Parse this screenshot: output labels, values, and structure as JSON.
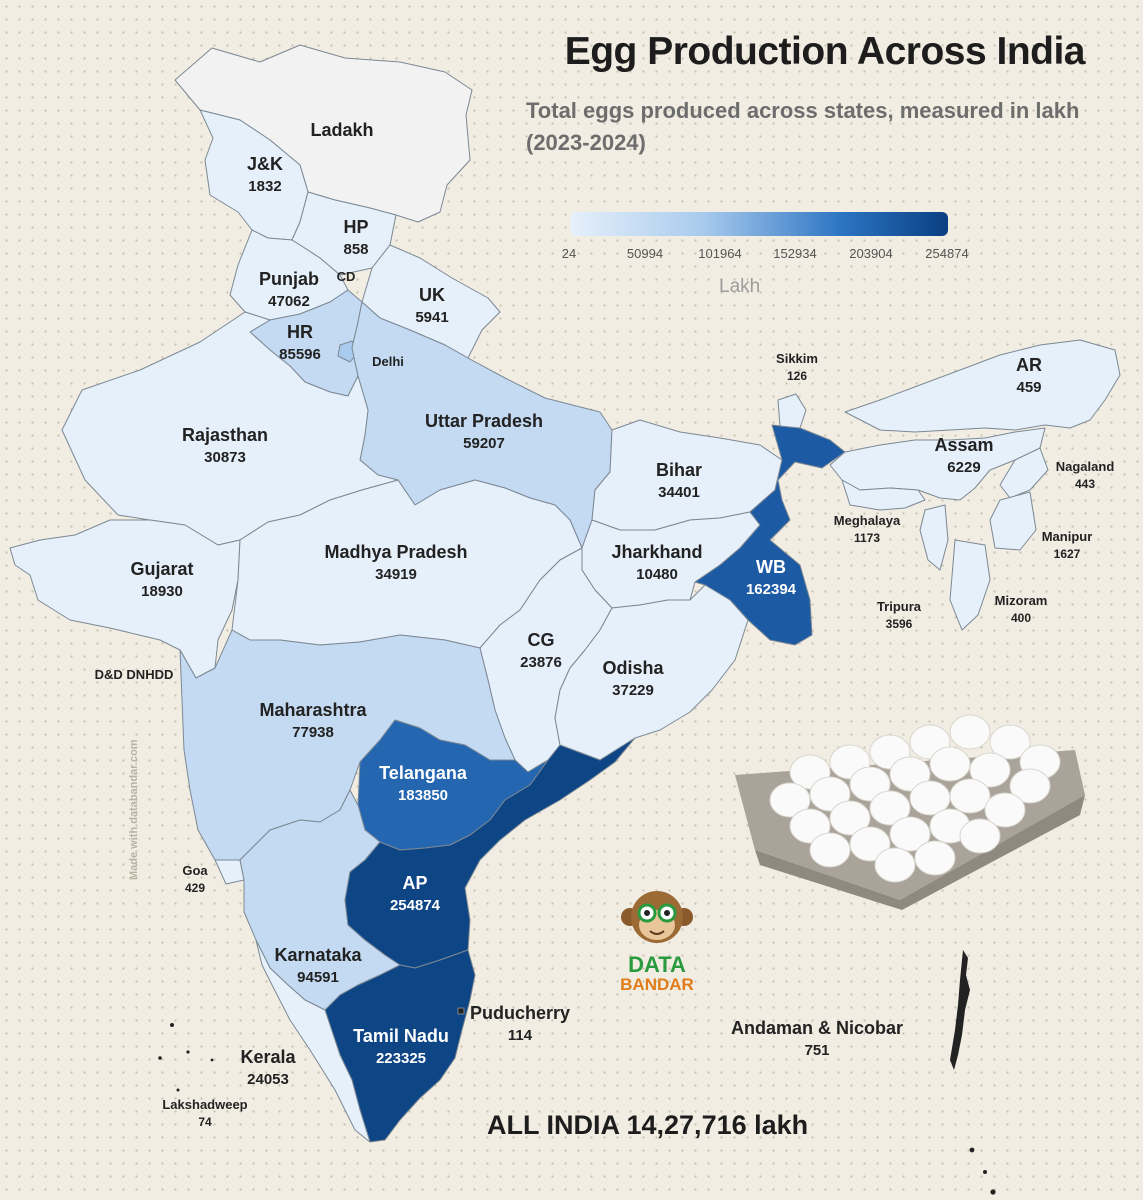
{
  "title": "Egg Production Across India",
  "subtitle": "Total eggs produced across states, measured in lakh (2023-2024)",
  "legend": {
    "ticks": [
      "24",
      "50994",
      "101964",
      "152934",
      "203904",
      "254874"
    ],
    "unit": "Lakh",
    "colors": [
      "#e6f0fb",
      "#a9cbed",
      "#2c74c2",
      "#0a3f82"
    ]
  },
  "total_label": "ALL INDIA 14,27,716 lakh",
  "credit": "Made with databandar.com",
  "brand": {
    "line1": "DATA",
    "line2": "BANDAR"
  },
  "colors": {
    "background": "#f1ede2",
    "lightest": "#e6f0fb",
    "light": "#c3daf2",
    "mid": "#a9cbed",
    "strong": "#2c74c2",
    "darkest": "#0e4585",
    "unfilled": "#f2f2f2"
  },
  "states": [
    {
      "key": "ladakh",
      "name": "Ladakh",
      "value": ""
    },
    {
      "key": "jk",
      "name": "J&K",
      "value": "1832"
    },
    {
      "key": "hp",
      "name": "HP",
      "value": "858"
    },
    {
      "key": "punjab",
      "name": "Punjab",
      "value": "47062"
    },
    {
      "key": "chd",
      "name": "CD",
      "value": ""
    },
    {
      "key": "uk",
      "name": "UK",
      "value": "5941"
    },
    {
      "key": "hr",
      "name": "HR",
      "value": "85596"
    },
    {
      "key": "delhi",
      "name": "Delhi",
      "value": ""
    },
    {
      "key": "rajasthan",
      "name": "Rajasthan",
      "value": "30873"
    },
    {
      "key": "up",
      "name": "Uttar Pradesh",
      "value": "59207"
    },
    {
      "key": "bihar",
      "name": "Bihar",
      "value": "34401"
    },
    {
      "key": "sikkim",
      "name": "Sikkim",
      "value": "126"
    },
    {
      "key": "ar",
      "name": "AR",
      "value": "459"
    },
    {
      "key": "assam",
      "name": "Assam",
      "value": "6229"
    },
    {
      "key": "nagaland",
      "name": "Nagaland",
      "value": "443"
    },
    {
      "key": "meghalaya",
      "name": "Meghalaya",
      "value": "1173"
    },
    {
      "key": "manipur",
      "name": "Manipur",
      "value": "1627"
    },
    {
      "key": "tripura",
      "name": "Tripura",
      "value": "3596"
    },
    {
      "key": "mizoram",
      "name": "Mizoram",
      "value": "400"
    },
    {
      "key": "gujarat",
      "name": "Gujarat",
      "value": "18930"
    },
    {
      "key": "mp",
      "name": "Madhya Pradesh",
      "value": "34919"
    },
    {
      "key": "jharkhand",
      "name": "Jharkhand",
      "value": "10480"
    },
    {
      "key": "wb",
      "name": "WB",
      "value": "162394"
    },
    {
      "key": "cg",
      "name": "CG",
      "value": "23876"
    },
    {
      "key": "odisha",
      "name": "Odisha",
      "value": "37229"
    },
    {
      "key": "dd",
      "name": "D&D DNHDD",
      "value": ""
    },
    {
      "key": "maharashtra",
      "name": "Maharashtra",
      "value": "77938"
    },
    {
      "key": "telangana",
      "name": "Telangana",
      "value": "183850"
    },
    {
      "key": "goa",
      "name": "Goa",
      "value": "429"
    },
    {
      "key": "ap",
      "name": "AP",
      "value": "254874"
    },
    {
      "key": "karnataka",
      "name": "Karnataka",
      "value": "94591"
    },
    {
      "key": "puducherry",
      "name": "Puducherry",
      "value": "114"
    },
    {
      "key": "tn",
      "name": "Tamil Nadu",
      "value": "223325"
    },
    {
      "key": "kerala",
      "name": "Kerala",
      "value": "24053"
    },
    {
      "key": "lakshadweep",
      "name": "Lakshadweep",
      "value": "74"
    },
    {
      "key": "andaman",
      "name": "Andaman & Nicobar",
      "value": "751"
    }
  ]
}
